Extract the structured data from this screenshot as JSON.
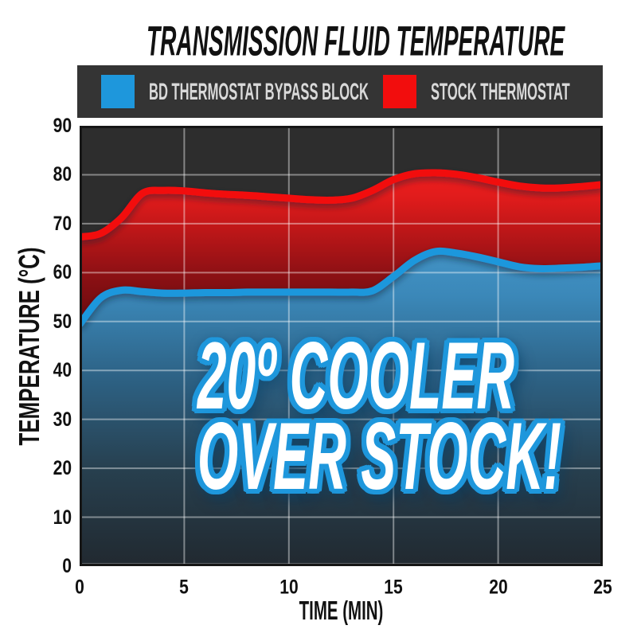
{
  "chart_data": {
    "type": "area",
    "title": "TRANSMISSION FLUID TEMPERATURE",
    "xlabel": "TIME (MIN)",
    "ylabel": "TEMPERATURE (°C)",
    "xlim": [
      0,
      25
    ],
    "ylim": [
      0,
      90
    ],
    "x_ticks": [
      0,
      5,
      10,
      15,
      20,
      25
    ],
    "y_ticks": [
      0,
      10,
      20,
      30,
      40,
      50,
      60,
      70,
      80,
      90
    ],
    "grid": true,
    "legend_position": "top",
    "x": [
      0,
      1,
      2,
      3,
      4,
      5,
      6,
      7,
      8,
      9,
      10,
      11,
      12,
      13,
      14,
      15,
      16,
      17,
      18,
      19,
      20,
      21,
      22,
      23,
      24,
      25
    ],
    "series": [
      {
        "name": "BD THERMOSTAT BYPASS BLOCK",
        "color": "#1e97dc",
        "values": [
          49.4,
          54.8,
          56.4,
          56.1,
          55.8,
          55.8,
          55.9,
          55.9,
          56.0,
          56.0,
          56.0,
          56.0,
          56.0,
          56.0,
          56.3,
          59.2,
          62.5,
          64.3,
          64.0,
          63.2,
          62.2,
          61.2,
          60.8,
          60.9,
          61.1,
          61.4
        ]
      },
      {
        "name": "STOCK THERMOSTAT",
        "color": "#f20d0d",
        "values": [
          67.3,
          68.0,
          71.2,
          76.2,
          76.8,
          76.7,
          76.3,
          76.0,
          75.8,
          75.5,
          75.2,
          74.9,
          74.8,
          75.2,
          76.8,
          79.0,
          80.2,
          80.4,
          80.1,
          79.4,
          78.5,
          77.7,
          77.3,
          77.3,
          77.6,
          78.0
        ]
      }
    ],
    "annotation": {
      "line1": "20º COOLER",
      "line2": "OVER STOCK!",
      "text_color": "#ffffff",
      "outline_color": "#1e97dc"
    },
    "colors": {
      "plot_background": "#2d2d2d",
      "gridline": "rgba(255,255,255,0.42)",
      "legend_background": "#343434",
      "legend_text": "#d9d9d9",
      "title_text": "#111111",
      "blue_fill_top": "#4293c5",
      "blue_fill_bottom": "#212930",
      "red_fill_top": "#f01e1e",
      "red_fill_bottom": "#2c0405"
    }
  }
}
